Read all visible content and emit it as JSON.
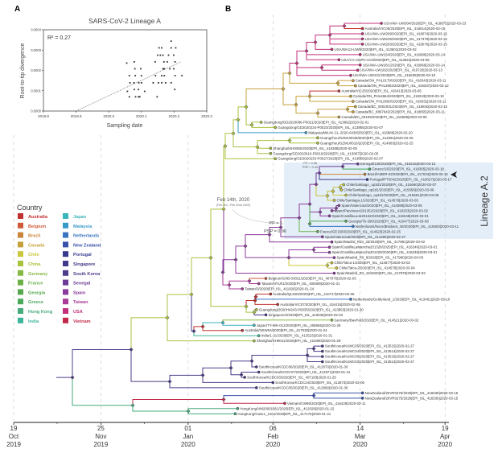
{
  "panel_labels": {
    "a": "A",
    "b": "B"
  },
  "chart_data": {
    "type": "scatter",
    "title": "SARS-CoV-2 Lineage A",
    "xlabel": "Sampling date",
    "ylabel": "Root-to-tip divergence",
    "xlim": [
      2019.8,
      2020.3
    ],
    "ylim": [
      0,
      0.0004
    ],
    "x_ticks": [
      "2019.8",
      "2019.9",
      "2020.0",
      "2020.1",
      "2020.2",
      "2020.3"
    ],
    "x_tick_values": [
      2019.8,
      2019.9,
      2020.0,
      2020.1,
      2020.2,
      2020.3
    ],
    "y_ticks": [
      "0.0000",
      "0.0001",
      "0.0002",
      "0.0003",
      "0.0004"
    ],
    "y_tick_values": [
      0,
      0.0001,
      0.0002,
      0.0003,
      0.0004
    ],
    "annotation": "R² = 0.27",
    "regression_line": [
      [
        2019.9,
        0
      ],
      [
        2020.22,
        0.000242
      ]
    ],
    "points": [
      [
        2020.055,
        0.000236
      ],
      [
        2020.078,
        0.000242
      ],
      [
        2020.063,
        0.000174
      ],
      [
        2020.081,
        0.000174
      ],
      [
        2020.098,
        0.000208
      ],
      [
        2020.08,
        0.000208
      ],
      [
        2020.1,
        0.000174
      ],
      [
        2020.065,
        0.000139
      ],
      [
        2020.077,
        0.000139
      ],
      [
        2020.092,
        0.000139
      ],
      [
        2020.1,
        0.000139
      ],
      [
        2020.057,
        9.7e-05
      ],
      [
        2020.078,
        0.000106
      ],
      [
        2020.091,
        0.000106
      ],
      [
        2020.11,
        9.7e-05
      ],
      [
        2020.063,
        7e-05
      ],
      [
        2020.082,
        7e-05
      ],
      [
        2020.091,
        7e-05
      ],
      [
        2020.095,
        7e-05
      ],
      [
        2020.148,
        7e-05
      ],
      [
        2020.136,
        0.000139
      ],
      [
        2020.152,
        0.000139
      ],
      [
        2020.162,
        0.000139
      ],
      [
        2020.174,
        0.000139
      ],
      [
        2020.191,
        0.000139
      ],
      [
        2020.15,
        0.000275
      ],
      [
        2020.158,
        0.000275
      ],
      [
        2020.166,
        0.000275
      ],
      [
        2020.142,
        0.000242
      ],
      [
        2020.169,
        0.000242
      ],
      [
        2020.179,
        0.000242
      ],
      [
        2020.143,
        0.000174
      ],
      [
        2020.162,
        0.000174
      ],
      [
        2020.17,
        0.000174
      ],
      [
        2020.166,
        0.000208
      ],
      [
        2020.17,
        0.000208
      ],
      [
        2020.187,
        0.000208
      ],
      [
        2020.199,
        0.000208
      ],
      [
        2020.203,
        0.000174
      ],
      [
        2020.224,
        0.000174
      ],
      [
        2020.202,
        0.000106
      ],
      [
        2020.191,
        0.000344
      ],
      [
        2020.191,
        0.000311
      ],
      [
        2020.154,
        0.000311
      ],
      [
        2020.162,
        0.000311
      ],
      [
        2020.183,
        0.000275
      ],
      [
        2020.205,
        0.000311
      ],
      [
        2020.199,
        0.000275
      ],
      [
        2020.203,
        0.000242
      ]
    ]
  },
  "legend": {
    "title": "Country",
    "items": [
      {
        "label": "Australia",
        "code": "AUS",
        "color": "#c1312f"
      },
      {
        "label": "Belgium",
        "code": "BEL",
        "color": "#cf5a38"
      },
      {
        "label": "Brazil",
        "code": "BRA",
        "color": "#c9853a"
      },
      {
        "label": "Canada",
        "code": "CAN",
        "color": "#c6a03b"
      },
      {
        "label": "Chile",
        "code": "CHL",
        "color": "#c9c53c"
      },
      {
        "label": "China",
        "code": "CHN",
        "color": "#a8c23e"
      },
      {
        "label": "Germany",
        "code": "DEU",
        "color": "#86b846"
      },
      {
        "label": "France",
        "code": "FRA",
        "color": "#6baf49"
      },
      {
        "label": "Georgia",
        "code": "GEO",
        "color": "#55a84e"
      },
      {
        "label": "Greece",
        "code": "GRC",
        "color": "#4ca95c"
      },
      {
        "label": "Hong Kong",
        "code": "HKG",
        "color": "#45ab7a"
      },
      {
        "label": "India",
        "code": "IND",
        "color": "#3db59c"
      },
      {
        "label": "Japan",
        "code": "JPN",
        "color": "#3ab5bb"
      },
      {
        "label": "Malaysia",
        "code": "MYS",
        "color": "#3a9bc9"
      },
      {
        "label": "Netherlands",
        "code": "NLD",
        "color": "#3a74c1"
      },
      {
        "label": "New Zealand",
        "code": "NZL",
        "color": "#3a50a9"
      },
      {
        "label": "Portugal",
        "code": "PRT",
        "color": "#37398f"
      },
      {
        "label": "Singapore",
        "code": "SGP",
        "color": "#41398b"
      },
      {
        "label": "South Korea",
        "code": "KOR",
        "color": "#4f3b8b"
      },
      {
        "label": "Senegal",
        "code": "SEN",
        "color": "#6b3b96"
      },
      {
        "label": "Spain",
        "code": "ESP",
        "color": "#8b3b9b"
      },
      {
        "label": "Taiwan",
        "code": "TWN",
        "color": "#a93a97"
      },
      {
        "label": "USA",
        "code": "USA",
        "color": "#c2317b"
      },
      {
        "label": "Vietnam",
        "code": "VNM",
        "color": "#c12b4b"
      }
    ]
  },
  "tree": {
    "tips": [
      {
        "label": "USA/WA-UW304/2020|EPI_ISL_418872|2020-03-23",
        "c": "USA"
      },
      {
        "label": "Australia/VIC05/2020|EPI_ISL_416514|2020-03-15",
        "c": "AUS"
      },
      {
        "label": "USA/WA-UW299/2020|EPI_ISL_418074|2020-03-15",
        "c": "USA"
      },
      {
        "label": "USA/WA-UW226/2020|EPI_ISL_417379|2020-03-15",
        "c": "USA"
      },
      {
        "label": "USA/WA-UW293/2020|EPI_ISL_418076|2020-03-15",
        "c": "USA"
      },
      {
        "label": "USA/WA13-UW9/2020|EPI_ISL_413601|2020-03-02",
        "c": "USA"
      },
      {
        "label": "USA/WA-UW154/2020|EPI_ISL_416680|2020-03-14",
        "c": "USA"
      },
      {
        "label": "USA/CA-CDPH-UC8/2020|EPI_ISL_413924|2020-03-05",
        "c": "USA"
      },
      {
        "label": "USA/WA-UW281/2020|EPI_ISL_418066|2020-03-14",
        "c": "USA"
      },
      {
        "label": "USA/WA-UW182/2020|EPI_ISL_416720|2020-03-13",
        "c": "USA"
      },
      {
        "label": "USA/WA-UW101/2020|EPI_ISL_416639|2020-03-10",
        "c": "USA"
      },
      {
        "label": "Canada/ON_PHL0179/2020|EPI_ISL_418343|2020-03-11",
        "c": "CAN"
      },
      {
        "label": "Canada/ON_PHL3602/2020|EPI_ISL_418337|2020-03-12",
        "c": "CAN"
      },
      {
        "label": "Australia/VIC25/2020|EPI_ISL_416413|2020-03-05",
        "c": "AUS"
      },
      {
        "label": "Canada/ON_PHL6964/2020|EPI_ISL_418343|2020-03-10",
        "c": "CAN"
      },
      {
        "label": "Canada/ON_PHL0650/2020|EPI_ISL_418332|2020-03-11",
        "c": "CAN"
      },
      {
        "label": "Canada/BC_0002001/2020|EPI_ISL_418840|2020-03-12",
        "c": "CAN"
      },
      {
        "label": "Canada/BC_8897942/2020|EPI_ISL_418855|2020-03-11",
        "c": "CAN"
      },
      {
        "label": "Canada/BC_03109/2020|EPI_ISL_415588|2020-03-05",
        "c": "CAN"
      },
      {
        "label": "Guangdong/GD2020086-P0021/2020|EPI_ISL_413862|2020-02-01",
        "c": "CHN"
      },
      {
        "label": "Guangdong/GD2020234-P0023/2020|EPI_ISL_413865|2020-02-07",
        "c": "CHN"
      },
      {
        "label": "Malaysia/MKAK-CL-2020-6430/2020|EPI_ISL_416886|2020-02-20",
        "c": "MYS"
      },
      {
        "label": "Guangzhou/GZMU0048/2020|EPI_ISL_414691|2020-02-25",
        "c": "CHN"
      },
      {
        "label": "Guangzhou/GZMU0016/2020|EPI_ISL_414683|2020-02-25",
        "c": "CHN"
      },
      {
        "label": "Shanghai/SH0065/2020|EPI_ISL_416368|2020-02-05",
        "c": "CHN"
      },
      {
        "label": "Guangdong/GD2020016-P0019/2020|EPI_ISL_413867|2020-02-05",
        "c": "CHN"
      },
      {
        "label": "Guangdong/GD2020233-P0027/2020|EPI_ISL_413856|2020-02-07",
        "c": "CHN"
      },
      {
        "label": "Senegal/136/2020|EPI_ISL_418216|2020-03-13",
        "c": "SEN"
      },
      {
        "label": "Greece/16/2020|EPI_ISL_418365|2020-03-18",
        "c": "GRC"
      },
      {
        "label": "Brazil/AMER-02/2020|EPI_ISL_417034|2020-03-16",
        "c": "BRA"
      },
      {
        "label": "Portugal/PT0042/2020|EPI_ISL_418027|2020-03-17",
        "c": "PRT"
      },
      {
        "label": "Chile/Santiago_op3d1/2020|EPI_ISL_415660|2020-03-07",
        "c": "CHL"
      },
      {
        "label": "Chile/Santiago_op2d1/2020|EPI_ISL_415658|2020-03-06",
        "c": "CHL"
      },
      {
        "label": "Chile/Santiago_op4d1/2020|EPI_ISL_415661|2020-03-08",
        "c": "CHL"
      },
      {
        "label": "Chile/Santiago-1/2020|EPI_ISL_414579|2020-03-03",
        "c": "CHL"
      },
      {
        "label": "Spain/Valencia3/2020|EPI_ISL_414598|2020-03-05",
        "c": "ESP"
      },
      {
        "label": "Spain/PaisVasco201352/2020|EPI_ISL_418253|2020-03-02",
        "c": "ESP"
      },
      {
        "label": "Spain/CastillaLeon201323/2020|EPI_ISL_418249|2020-03-01",
        "c": "ESP"
      },
      {
        "label": "Georgia/Tb-390/2020|EPI_ISL_416477|2020-03-08",
        "c": "GEO"
      },
      {
        "label": "Netherlands/NoordBrabant_40/2020|EPI_ISL_415503|2020-03-11",
        "c": "NLD"
      },
      {
        "label": "France/GE1583/2020|EPI_ISL_414623|2020-02-25",
        "c": "FRA"
      },
      {
        "label": "Spain/Valencia6/2020|EPI_ISL_414485|2020-02-27",
        "c": "ESP"
      },
      {
        "label": "Spain/Madrid_R10_33/2020|EPI_ISL_417981|2020-03-02",
        "c": "ESP"
      },
      {
        "label": "Spain/CastillaLaMancha201328/2020|EPI_ISL_418246|2020-03-01",
        "c": "ESP"
      },
      {
        "label": "Spain/CastillaLaMancha201329/2020|EPI_ISL_418248|2020-03-01",
        "c": "ESP"
      },
      {
        "label": "Spain/Madrid_R5_8/2020|EPI_ISL_417980|2020-03-03",
        "c": "ESP"
      },
      {
        "label": "Chile/Talca-1/2020|EPI_ISL_414577|2020-03-02",
        "c": "CHL"
      },
      {
        "label": "Chile/Talca-2/2020|EPI_ISL_414578|2020-03-04",
        "c": "CHL"
      },
      {
        "label": "Spain/Madrid_R2_15/2020|EPI_ISL_417979|2020-03-03",
        "c": "ESP"
      },
      {
        "label": "Belgium/GHB-03021/2020|EPI_ISL_407976|2020-02-03",
        "c": "BEL"
      },
      {
        "label": "Taiwan/NTU01/2020|EPI_ISL_408489|2020-01-31",
        "c": "TWN"
      },
      {
        "label": "Taiwan/3/2020|EPI_ISL_411926|2020-01-24",
        "c": "TWN"
      },
      {
        "label": "Australia/QLD03/2020|EPI_ISL_410717|2020-02-05",
        "c": "AUS"
      },
      {
        "label": "Netherlands/Gelderland_1/2020|EPI_ISL_413461|2020-03-10",
        "c": "NLD"
      },
      {
        "label": "Australia/VIC07/2020|EPI_ISL_416415|2020-02-08",
        "c": "AUS"
      },
      {
        "label": "Guangdong/2020H4243-P0035/2020|EPI_ISL_413853|2020-01-30",
        "c": "CHN"
      },
      {
        "label": "Singapore/4/2020|EPI_ISL_410535|2020-02-03",
        "c": "SGP"
      },
      {
        "label": "Germany/BavPat3/2020|EPI_ISL_414521|2020-03-02",
        "c": "DEU"
      },
      {
        "label": "Japan/TY-WK-012/2020|EPI_ISL_408665|2020-01-29",
        "c": "JPN"
      },
      {
        "label": "Australia/NSW04/2020|EPI_ISL_417030|2020-01-24",
        "c": "AUS"
      },
      {
        "label": "India/1-31/2020|EPI_ISL_413523|2020-01-31",
        "c": "IND"
      },
      {
        "label": "Shanghai/SH0041/2020|EPI_ISL_416390|2020-01-29",
        "c": "CHN"
      },
      {
        "label": "SouthKorea/KUMC05/2020|EPI_ISL_413515|2020-02-27",
        "c": "KOR"
      },
      {
        "label": "SouthKorea/KUMC04/2020|EPI_ISL_413514|2020-02-27",
        "c": "KOR"
      },
      {
        "label": "SouthKorea/KUMC06/2020|EPI_ISL_413516|2020-02-27",
        "c": "KOR"
      },
      {
        "label": "SouthKorea/KUMC03/2020|EPI_ISL_413513|2020-02-27",
        "c": "KOR"
      },
      {
        "label": "SouthKorea/KCDC06/2020|EPI_ISL_412870|2020-01-30",
        "c": "KOR"
      },
      {
        "label": "SouthKorea/KCDC07/2020|EPI_ISL_412871|2020-01-31",
        "c": "KOR"
      },
      {
        "label": "SouthKorea/KCDC03/2020|EPI_ISL_407193|2020-01-25",
        "c": "KOR"
      },
      {
        "label": "SouthKorea/KCDC24/2020|EPI_ISL_412873|2020-02-06",
        "c": "KOR"
      },
      {
        "label": "SouthKorea/KCDC05/2020|EPI_ISL_412869|2020-01-30",
        "c": "KOR"
      },
      {
        "label": "NewZealand/20VR0276/2020|EPI_ISL_416538|2020-03-15",
        "c": "NZL"
      },
      {
        "label": "NewZealand/20VR0275/2020|EPI_ISL_416536|2020-03-15",
        "c": "NZL"
      },
      {
        "label": "Vietnam/CM95/2020|EPI_ISL_416429|2020-02-11",
        "c": "VNM"
      },
      {
        "label": "HongKong/VM20001061/2020|EPI_ISL_412028|2020-01-22",
        "c": "HKG"
      },
      {
        "label": "HongKong/Case1_2101/2020|EPI_ISL_417176|2020-01-21",
        "c": "HKG"
      }
    ],
    "annotations": {
      "pp_a2": "PP = 1",
      "psp_a2": "PSP = 0.96",
      "pp_sub": "PP = 0.98",
      "psp_sub": "PSP = 0.43",
      "tmrca": "Feb 14th, 2020",
      "tmrca_range": "(Feb 3rd - Feb 22nd 2020)",
      "lineage_label": "Lineage A.2"
    },
    "axis_ticks": [
      {
        "date": "2019-10-19",
        "day": "19",
        "month": "Oct",
        "year": "2019"
      },
      {
        "date": "2019-11-25",
        "day": "25",
        "month": "Nov",
        "year": "2019"
      },
      {
        "date": "2020-01-01",
        "day": "01",
        "month": "Jan",
        "year": "2020"
      },
      {
        "date": "2020-02-06",
        "day": "06",
        "month": "Feb",
        "year": "2020"
      },
      {
        "date": "2020-03-14",
        "day": "14",
        "month": "Mar",
        "year": "2020"
      },
      {
        "date": "2020-04-19",
        "day": "19",
        "month": "Apr",
        "year": "2020"
      }
    ]
  }
}
